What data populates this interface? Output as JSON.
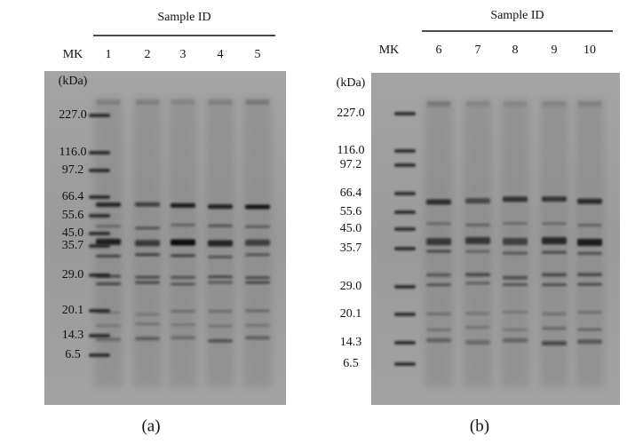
{
  "panels": [
    {
      "caption": "(a)",
      "group_label": "Sample ID",
      "marker_lane": "MK",
      "lanes": [
        "1",
        "2",
        "3",
        "4",
        "5"
      ],
      "unit": "(kDa)",
      "markers": [
        "227.0",
        "116.0",
        "97.2",
        "66.4",
        "55.6",
        "45.0",
        "35.7",
        "29.0",
        "20.1",
        "14.3",
        "6.5"
      ]
    },
    {
      "caption": "(b)",
      "group_label": "Sample ID",
      "marker_lane": "MK",
      "lanes": [
        "6",
        "7",
        "8",
        "9",
        "10"
      ],
      "unit": "(kDa)",
      "markers": [
        "227.0",
        "116.0",
        "97.2",
        "66.4",
        "55.6",
        "45.0",
        "35.7",
        "29.0",
        "20.1",
        "14.3",
        "6.5"
      ]
    }
  ]
}
